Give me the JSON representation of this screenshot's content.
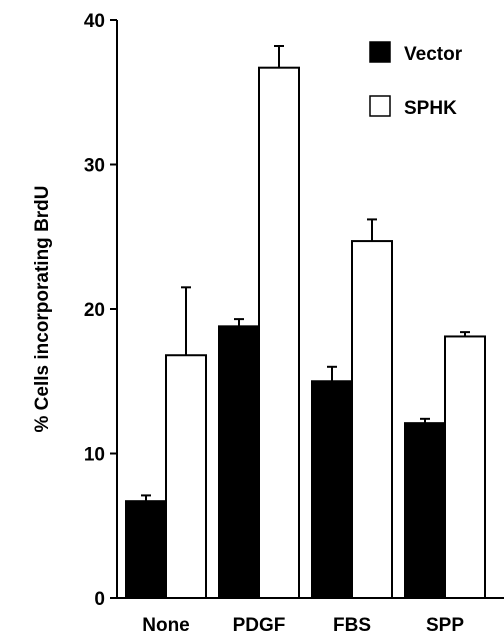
{
  "chart_data": {
    "type": "bar",
    "ylabel": "% Cells incorporating BrdU",
    "ylim": [
      0,
      40
    ],
    "yticks": [
      0,
      10,
      20,
      30,
      40
    ],
    "categories": [
      "None",
      "PDGF",
      "FBS",
      "SPP"
    ],
    "series": [
      {
        "name": "Vector",
        "fill": "#000000",
        "values": [
          6.7,
          18.8,
          15.0,
          12.1
        ],
        "errors": [
          0.4,
          0.5,
          1.0,
          0.3
        ]
      },
      {
        "name": "SPHK",
        "fill": "#ffffff",
        "values": [
          16.8,
          36.7,
          24.7,
          18.1
        ],
        "errors": [
          4.7,
          1.5,
          1.5,
          0.3
        ]
      }
    ],
    "legend": {
      "placement": "top-right"
    },
    "grid": false
  }
}
